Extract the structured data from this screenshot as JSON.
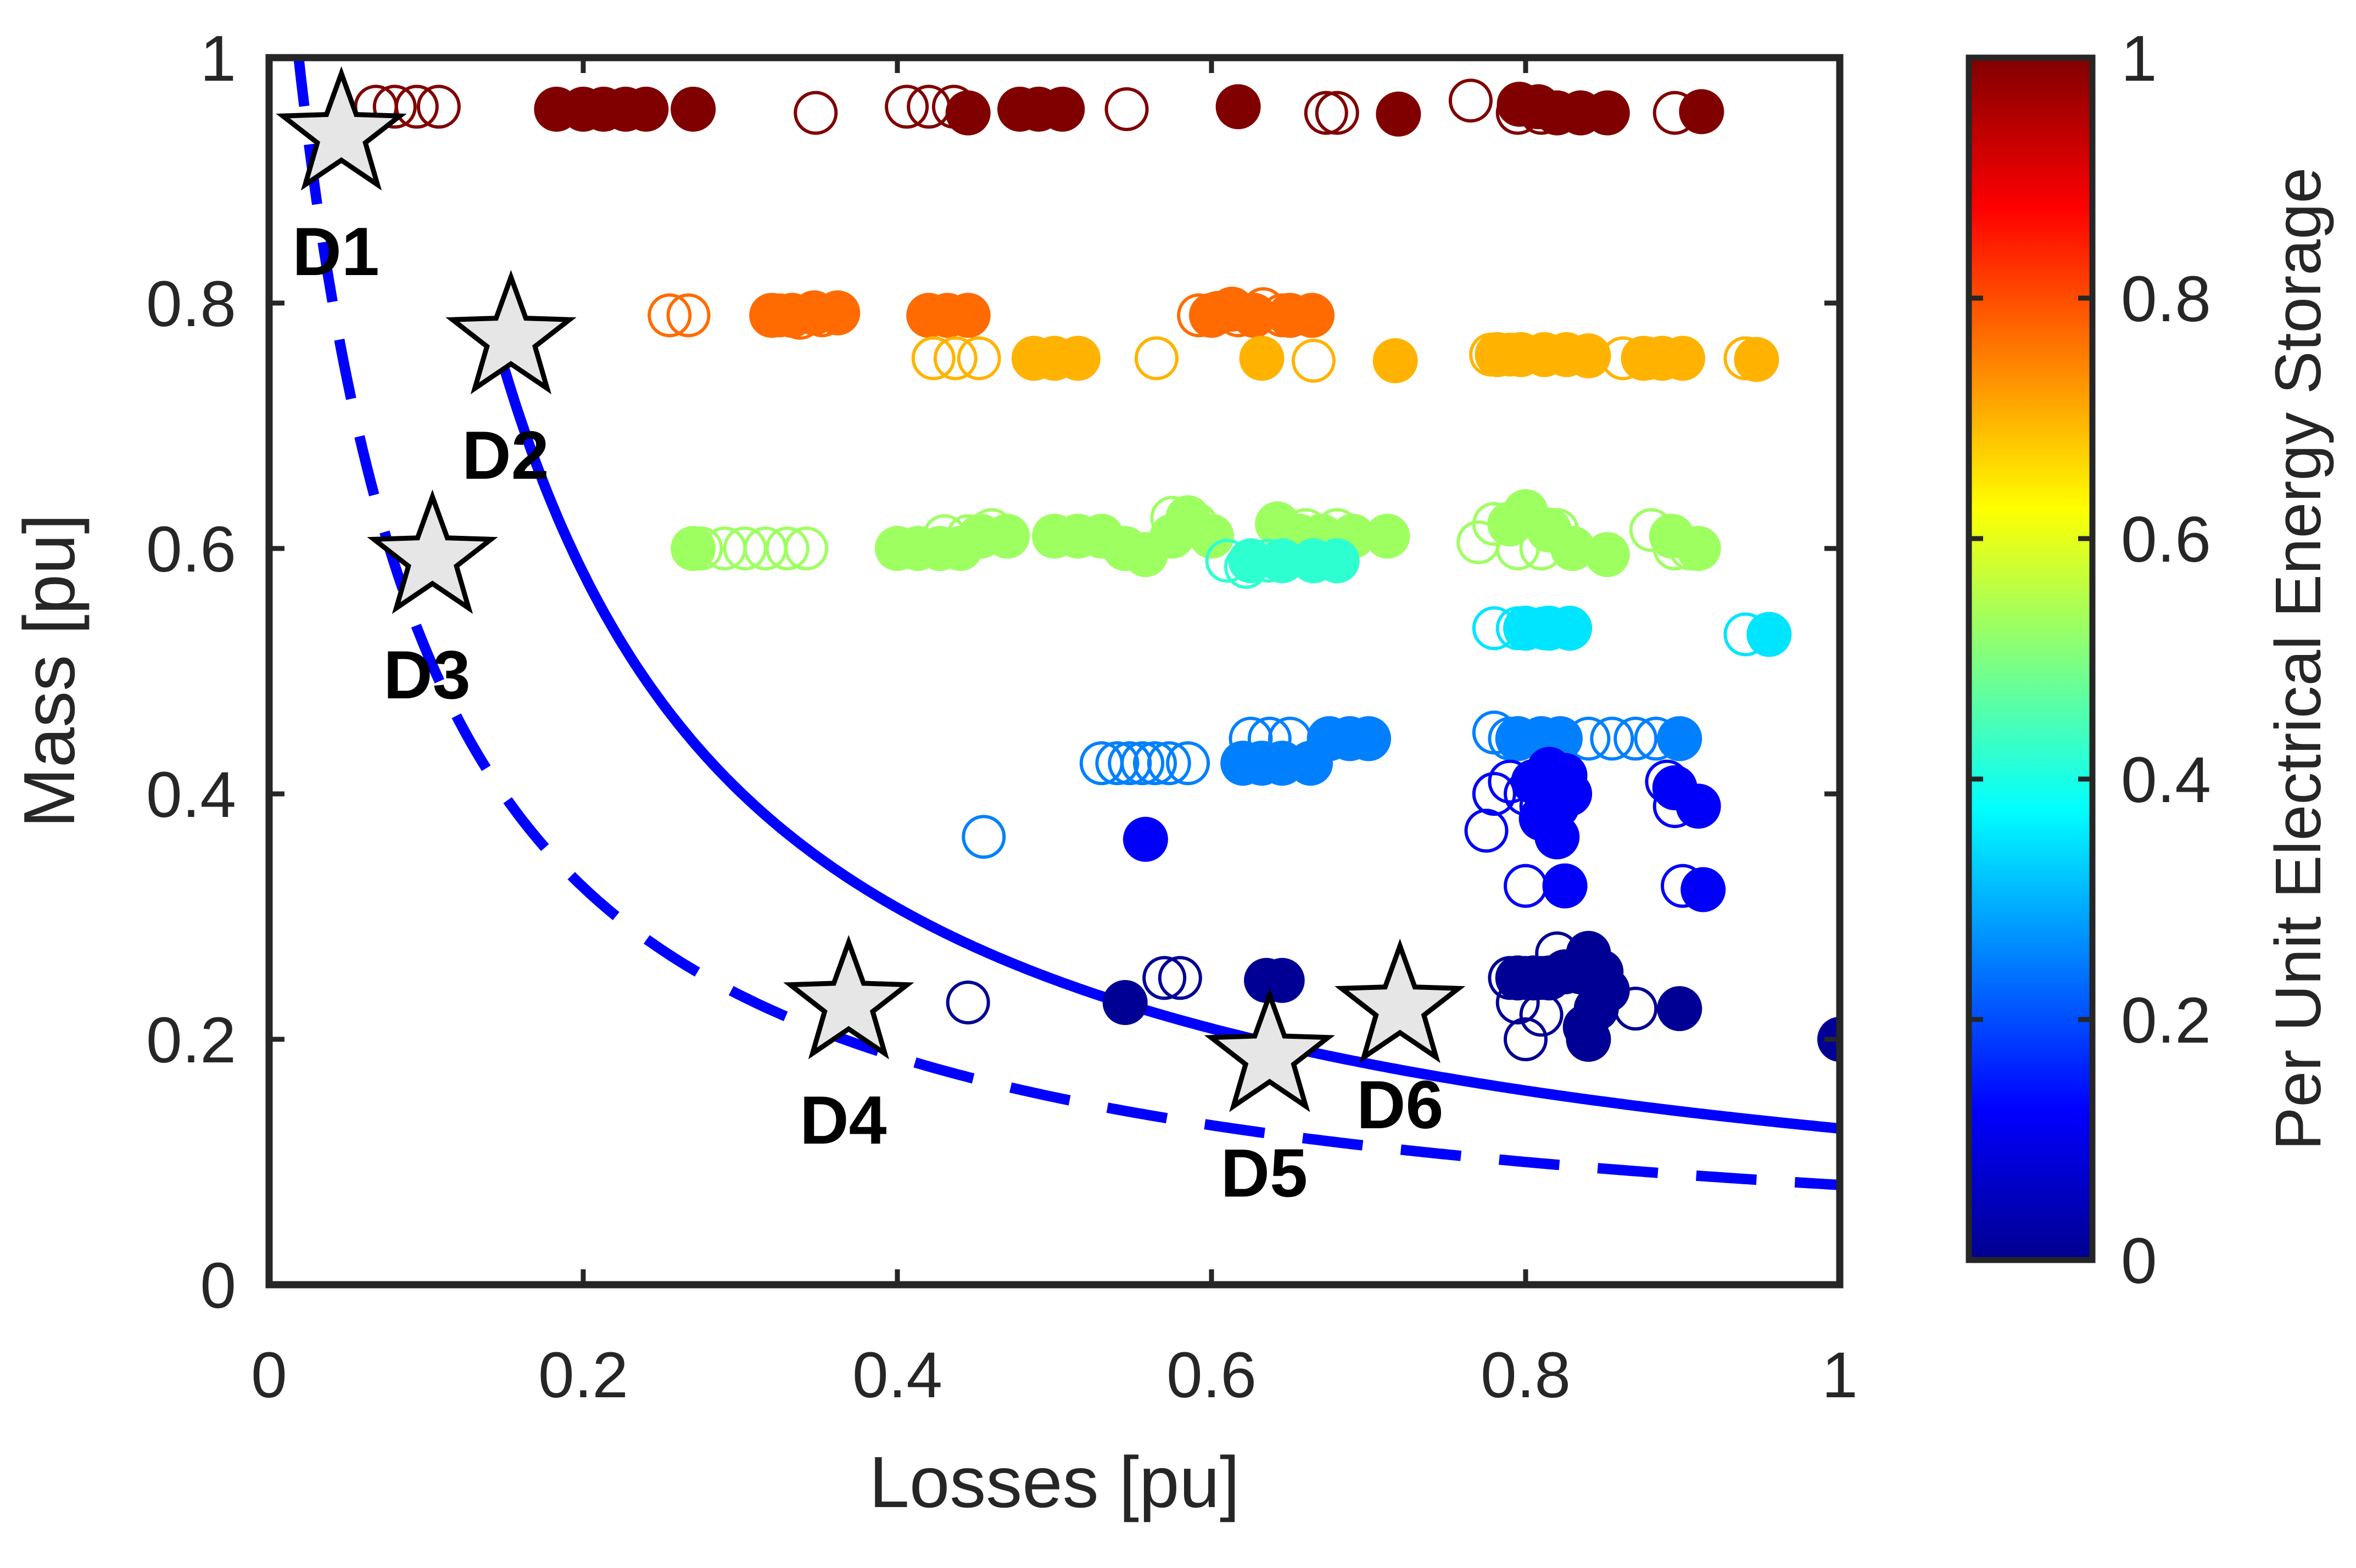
{
  "chart_data": {
    "type": "scatter",
    "xlabel": "Losses [pu]",
    "ylabel": "Mass [pu]",
    "xlim": [
      0,
      1
    ],
    "ylim": [
      0,
      1
    ],
    "x_ticks": [
      0,
      0.2,
      0.4,
      0.6,
      0.8,
      1
    ],
    "x_tick_labels": [
      "0",
      "0.2",
      "0.4",
      "0.6",
      "0.8",
      "1"
    ],
    "y_ticks": [
      0,
      0.2,
      0.4,
      0.6,
      0.8,
      1
    ],
    "y_tick_labels": [
      "0",
      "0.2",
      "0.4",
      "0.6",
      "0.8",
      "1"
    ],
    "grid": false,
    "colorbar": {
      "label": "Per Unit Electrical Energy Storage",
      "range": [
        0,
        1
      ],
      "ticks": [
        0,
        0.2,
        0.4,
        0.6,
        0.8,
        1
      ],
      "tick_labels": [
        "0",
        "0.2",
        "0.4",
        "0.6",
        "0.8",
        "1"
      ],
      "colormap": "jet"
    },
    "curves": [
      {
        "name": "solid-front",
        "style": "solid",
        "color": "#0000ff",
        "a": 0.1305,
        "b": 0.025,
        "x_range": [
          0.15,
          1.0
        ]
      },
      {
        "name": "dashed-front",
        "style": "dashed",
        "color": "#0000ff",
        "a": 0.0868,
        "b": 0.068,
        "x_range": [
          0.018,
          1.0
        ]
      }
    ],
    "designs": [
      {
        "label": "D1",
        "x": 0.046,
        "y": 0.937,
        "label_pos": "below"
      },
      {
        "label": "D2",
        "x": 0.154,
        "y": 0.771,
        "label_pos": "below"
      },
      {
        "label": "D3",
        "x": 0.104,
        "y": 0.592,
        "label_pos": "below"
      },
      {
        "label": "D4",
        "x": 0.369,
        "y": 0.229,
        "label_pos": "below"
      },
      {
        "label": "D5",
        "x": 0.637,
        "y": 0.186,
        "label_pos": "below"
      },
      {
        "label": "D6",
        "x": 0.72,
        "y": 0.226,
        "label_pos": "below-right"
      }
    ],
    "series": [
      {
        "name": "storage-1.0-filled",
        "c": 1.0,
        "filled": true,
        "points": [
          [
            0.183,
            0.958
          ],
          [
            0.2,
            0.958
          ],
          [
            0.213,
            0.958
          ],
          [
            0.227,
            0.958
          ],
          [
            0.24,
            0.958
          ],
          [
            0.27,
            0.958
          ],
          [
            0.445,
            0.955
          ],
          [
            0.478,
            0.958
          ],
          [
            0.49,
            0.958
          ],
          [
            0.505,
            0.958
          ],
          [
            0.617,
            0.96
          ],
          [
            0.719,
            0.954
          ],
          [
            0.796,
            0.962
          ],
          [
            0.808,
            0.96
          ],
          [
            0.82,
            0.955
          ],
          [
            0.835,
            0.955
          ],
          [
            0.852,
            0.955
          ],
          [
            0.912,
            0.956
          ]
        ]
      },
      {
        "name": "storage-1.0-hollow",
        "c": 1.0,
        "filled": false,
        "points": [
          [
            0.068,
            0.96
          ],
          [
            0.08,
            0.96
          ],
          [
            0.094,
            0.96
          ],
          [
            0.108,
            0.96
          ],
          [
            0.348,
            0.955
          ],
          [
            0.406,
            0.96
          ],
          [
            0.42,
            0.96
          ],
          [
            0.436,
            0.96
          ],
          [
            0.546,
            0.958
          ],
          [
            0.673,
            0.955
          ],
          [
            0.68,
            0.955
          ],
          [
            0.765,
            0.965
          ],
          [
            0.795,
            0.955
          ],
          [
            0.81,
            0.955
          ],
          [
            0.895,
            0.955
          ]
        ]
      },
      {
        "name": "storage-0.8-filled",
        "c": 0.77,
        "filled": true,
        "points": [
          [
            0.32,
            0.79
          ],
          [
            0.333,
            0.79
          ],
          [
            0.347,
            0.792
          ],
          [
            0.362,
            0.792
          ],
          [
            0.42,
            0.79
          ],
          [
            0.432,
            0.79
          ],
          [
            0.445,
            0.79
          ],
          [
            0.6,
            0.79
          ],
          [
            0.613,
            0.795
          ],
          [
            0.627,
            0.79
          ],
          [
            0.65,
            0.79
          ],
          [
            0.664,
            0.79
          ]
        ]
      },
      {
        "name": "storage-0.8-hollow",
        "c": 0.77,
        "filled": false,
        "points": [
          [
            0.255,
            0.79
          ],
          [
            0.267,
            0.79
          ],
          [
            0.325,
            0.79
          ],
          [
            0.338,
            0.788
          ],
          [
            0.352,
            0.79
          ],
          [
            0.592,
            0.79
          ],
          [
            0.604,
            0.792
          ],
          [
            0.617,
            0.79
          ],
          [
            0.633,
            0.795
          ],
          [
            0.645,
            0.79
          ]
        ]
      },
      {
        "name": "storage-0.7-filled",
        "c": 0.7,
        "filled": true,
        "points": [
          [
            0.487,
            0.755
          ],
          [
            0.5,
            0.755
          ],
          [
            0.515,
            0.755
          ],
          [
            0.632,
            0.755
          ],
          [
            0.717,
            0.753
          ],
          [
            0.782,
            0.758
          ],
          [
            0.797,
            0.758
          ],
          [
            0.812,
            0.758
          ],
          [
            0.826,
            0.758
          ],
          [
            0.84,
            0.757
          ],
          [
            0.875,
            0.755
          ],
          [
            0.887,
            0.755
          ],
          [
            0.9,
            0.755
          ],
          [
            0.947,
            0.754
          ]
        ]
      },
      {
        "name": "storage-0.7-hollow",
        "c": 0.7,
        "filled": false,
        "points": [
          [
            0.423,
            0.755
          ],
          [
            0.437,
            0.755
          ],
          [
            0.452,
            0.755
          ],
          [
            0.565,
            0.755
          ],
          [
            0.665,
            0.753
          ],
          [
            0.778,
            0.758
          ],
          [
            0.79,
            0.758
          ],
          [
            0.862,
            0.755
          ],
          [
            0.877,
            0.755
          ],
          [
            0.94,
            0.755
          ]
        ]
      },
      {
        "name": "storage-0.55-filled",
        "c": 0.53,
        "filled": true,
        "points": [
          [
            0.27,
            0.6
          ],
          [
            0.4,
            0.6
          ],
          [
            0.413,
            0.6
          ],
          [
            0.427,
            0.6
          ],
          [
            0.44,
            0.6
          ],
          [
            0.453,
            0.61
          ],
          [
            0.47,
            0.61
          ],
          [
            0.5,
            0.61
          ],
          [
            0.515,
            0.61
          ],
          [
            0.53,
            0.61
          ],
          [
            0.545,
            0.6
          ],
          [
            0.558,
            0.595
          ],
          [
            0.575,
            0.61
          ],
          [
            0.585,
            0.625
          ],
          [
            0.6,
            0.61
          ],
          [
            0.642,
            0.62
          ],
          [
            0.656,
            0.61
          ],
          [
            0.67,
            0.61
          ],
          [
            0.69,
            0.61
          ],
          [
            0.712,
            0.61
          ],
          [
            0.79,
            0.62
          ],
          [
            0.8,
            0.63
          ],
          [
            0.815,
            0.615
          ],
          [
            0.83,
            0.6
          ],
          [
            0.852,
            0.595
          ],
          [
            0.893,
            0.61
          ],
          [
            0.91,
            0.6
          ]
        ]
      },
      {
        "name": "storage-0.55-hollow",
        "c": 0.53,
        "filled": false,
        "points": [
          [
            0.275,
            0.6
          ],
          [
            0.29,
            0.6
          ],
          [
            0.303,
            0.6
          ],
          [
            0.316,
            0.6
          ],
          [
            0.33,
            0.6
          ],
          [
            0.342,
            0.6
          ],
          [
            0.4,
            0.6
          ],
          [
            0.43,
            0.61
          ],
          [
            0.445,
            0.61
          ],
          [
            0.46,
            0.615
          ],
          [
            0.575,
            0.625
          ],
          [
            0.59,
            0.62
          ],
          [
            0.66,
            0.615
          ],
          [
            0.68,
            0.615
          ],
          [
            0.77,
            0.605
          ],
          [
            0.78,
            0.62
          ],
          [
            0.795,
            0.6
          ],
          [
            0.81,
            0.6
          ],
          [
            0.82,
            0.615
          ],
          [
            0.88,
            0.615
          ],
          [
            0.895,
            0.6
          ],
          [
            0.905,
            0.6
          ]
        ]
      },
      {
        "name": "storage-0.42-filled",
        "c": 0.42,
        "filled": true,
        "points": [
          [
            0.625,
            0.59
          ],
          [
            0.645,
            0.59
          ],
          [
            0.665,
            0.59
          ],
          [
            0.68,
            0.59
          ]
        ]
      },
      {
        "name": "storage-0.42-hollow",
        "c": 0.42,
        "filled": false,
        "points": [
          [
            0.61,
            0.59
          ],
          [
            0.622,
            0.585
          ],
          [
            0.636,
            0.59
          ]
        ]
      },
      {
        "name": "storage-0.35-filled",
        "c": 0.35,
        "filled": true,
        "points": [
          [
            0.8,
            0.535
          ],
          [
            0.815,
            0.535
          ],
          [
            0.828,
            0.535
          ],
          [
            0.955,
            0.53
          ]
        ]
      },
      {
        "name": "storage-0.35-hollow",
        "c": 0.35,
        "filled": false,
        "points": [
          [
            0.78,
            0.535
          ],
          [
            0.795,
            0.535
          ],
          [
            0.812,
            0.535
          ],
          [
            0.94,
            0.53
          ]
        ]
      },
      {
        "name": "storage-0.25-filled",
        "c": 0.25,
        "filled": true,
        "points": [
          [
            0.62,
            0.425
          ],
          [
            0.632,
            0.425
          ],
          [
            0.645,
            0.425
          ],
          [
            0.663,
            0.425
          ],
          [
            0.675,
            0.445
          ],
          [
            0.688,
            0.445
          ],
          [
            0.7,
            0.445
          ],
          [
            0.795,
            0.445
          ],
          [
            0.81,
            0.445
          ],
          [
            0.822,
            0.445
          ],
          [
            0.898,
            0.445
          ]
        ]
      },
      {
        "name": "storage-0.25-hollow",
        "c": 0.25,
        "filled": false,
        "points": [
          [
            0.53,
            0.425
          ],
          [
            0.54,
            0.425
          ],
          [
            0.548,
            0.425
          ],
          [
            0.556,
            0.425
          ],
          [
            0.564,
            0.425
          ],
          [
            0.573,
            0.425
          ],
          [
            0.585,
            0.425
          ],
          [
            0.625,
            0.445
          ],
          [
            0.637,
            0.445
          ],
          [
            0.65,
            0.445
          ],
          [
            0.78,
            0.45
          ],
          [
            0.79,
            0.445
          ],
          [
            0.84,
            0.445
          ],
          [
            0.855,
            0.445
          ],
          [
            0.87,
            0.445
          ],
          [
            0.883,
            0.445
          ],
          [
            0.455,
            0.365
          ]
        ]
      },
      {
        "name": "storage-0.12-filled",
        "c": 0.12,
        "filled": true,
        "points": [
          [
            0.558,
            0.363
          ],
          [
            0.805,
            0.41
          ],
          [
            0.815,
            0.42
          ],
          [
            0.825,
            0.415
          ],
          [
            0.828,
            0.4
          ],
          [
            0.82,
            0.39
          ],
          [
            0.81,
            0.38
          ],
          [
            0.82,
            0.365
          ],
          [
            0.825,
            0.325
          ],
          [
            0.895,
            0.405
          ],
          [
            0.91,
            0.39
          ],
          [
            0.913,
            0.322
          ]
        ]
      },
      {
        "name": "storage-0.12-hollow",
        "c": 0.12,
        "filled": false,
        "points": [
          [
            0.775,
            0.37
          ],
          [
            0.78,
            0.4
          ],
          [
            0.79,
            0.41
          ],
          [
            0.8,
            0.4
          ],
          [
            0.8,
            0.325
          ],
          [
            0.81,
            0.39
          ],
          [
            0.89,
            0.41
          ],
          [
            0.895,
            0.39
          ],
          [
            0.9,
            0.325
          ]
        ]
      },
      {
        "name": "storage-0.03-filled",
        "c": 0.02,
        "filled": true,
        "points": [
          [
            0.545,
            0.23
          ],
          [
            0.635,
            0.248
          ],
          [
            0.645,
            0.248
          ],
          [
            0.795,
            0.25
          ],
          [
            0.805,
            0.25
          ],
          [
            0.815,
            0.25
          ],
          [
            0.825,
            0.255
          ],
          [
            0.835,
            0.255
          ],
          [
            0.84,
            0.27
          ],
          [
            0.848,
            0.255
          ],
          [
            0.852,
            0.24
          ],
          [
            0.845,
            0.225
          ],
          [
            0.838,
            0.21
          ],
          [
            0.84,
            0.2
          ],
          [
            0.898,
            0.225
          ],
          [
            1.0,
            0.2
          ]
        ]
      },
      {
        "name": "storage-0.03-hollow",
        "c": 0.02,
        "filled": false,
        "points": [
          [
            0.445,
            0.23
          ],
          [
            0.57,
            0.25
          ],
          [
            0.58,
            0.25
          ],
          [
            0.79,
            0.25
          ],
          [
            0.8,
            0.25
          ],
          [
            0.81,
            0.25
          ],
          [
            0.82,
            0.27
          ],
          [
            0.795,
            0.23
          ],
          [
            0.8,
            0.2
          ],
          [
            0.81,
            0.22
          ],
          [
            0.87,
            0.225
          ]
        ]
      }
    ]
  }
}
